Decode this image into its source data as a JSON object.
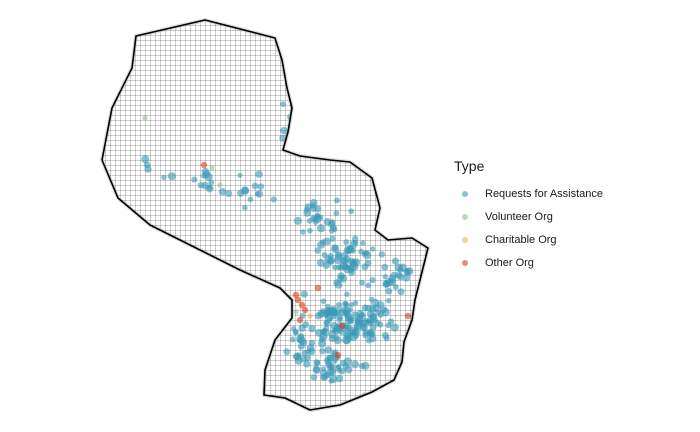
{
  "legend": {
    "title": "Type",
    "items": [
      {
        "label": "Requests for Assistance",
        "color": "#3a9ab8"
      },
      {
        "label": "Volunteer Org",
        "color": "#8fc28a"
      },
      {
        "label": "Charitable Org",
        "color": "#e8b84a"
      },
      {
        "label": "Other Org",
        "color": "#e03b1a"
      }
    ]
  },
  "map": {
    "region": "Paraguay",
    "grid": "on",
    "border_color": "#000000",
    "point_opacity": 0.6
  }
}
